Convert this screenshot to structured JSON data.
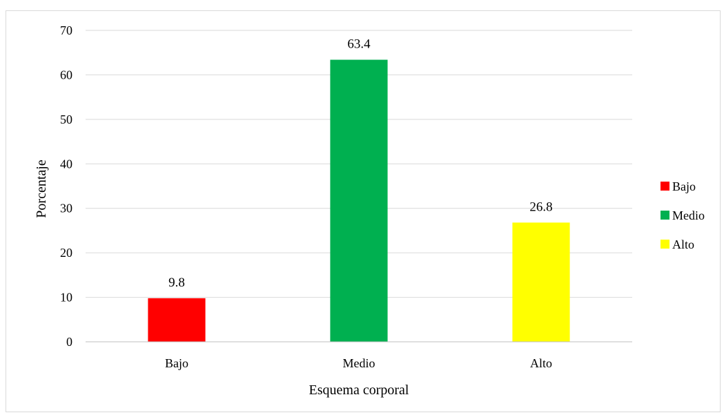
{
  "chart_data": {
    "type": "bar",
    "categories": [
      "Bajo",
      "Medio",
      "Alto"
    ],
    "values": [
      9.8,
      63.4,
      26.8
    ],
    "colors": [
      "#ff0000",
      "#00b050",
      "#ffff00"
    ],
    "data_labels": [
      "9.8",
      "63.4",
      "26.8"
    ],
    "xlabel": "Esquema corporal",
    "ylabel": "Porcentaje",
    "ylim": [
      0,
      70
    ],
    "yticks": [
      0,
      10,
      20,
      30,
      40,
      50,
      60,
      70
    ],
    "grid": true,
    "gridline_color": "#d9d9d9",
    "legend": {
      "placement": "right",
      "entries": [
        "Bajo",
        "Medio",
        "Alto"
      ]
    }
  }
}
